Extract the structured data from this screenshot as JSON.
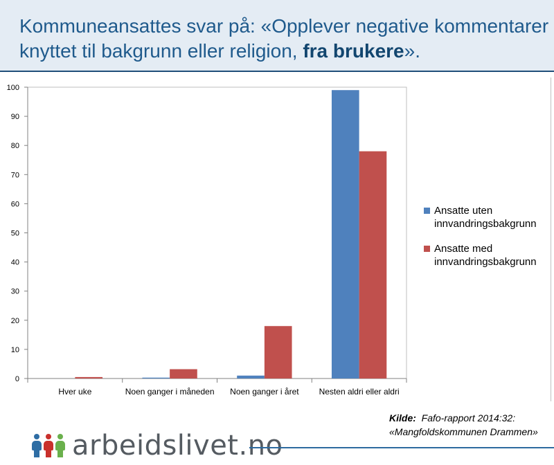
{
  "header": {
    "title_prefix": "Kommuneansattes svar på: «Opplever negative kommentarer knyttet til bakgrunn eller religion, ",
    "title_bold": "fra brukere",
    "title_suffix": "»."
  },
  "chart_data": {
    "type": "bar",
    "title": "",
    "xlabel": "",
    "ylabel": "",
    "ylim": [
      0,
      100
    ],
    "yticks": [
      0,
      10,
      20,
      30,
      40,
      50,
      60,
      70,
      80,
      90,
      100
    ],
    "categories": [
      "Hver uke",
      "Noen ganger i måneden",
      "Noen ganger i året",
      "Nesten aldri eller aldri"
    ],
    "series": [
      {
        "name": "Ansatte uten innvandringsbakgrunn",
        "legend_lines": [
          "Ansatte uten",
          "innvandringsbakgrunn"
        ],
        "color": "#4f81bd",
        "values": [
          0,
          0.3,
          1,
          99
        ]
      },
      {
        "name": "Ansatte med innvandringsbakgrunn",
        "legend_lines": [
          "Ansatte med",
          "innvandringsbakgrunn"
        ],
        "color": "#c0504d",
        "values": [
          0.5,
          3.2,
          18,
          78
        ]
      }
    ],
    "legend_position": "right"
  },
  "source": {
    "label": "Kilde:",
    "line1": "Fafo-rapport 2014:32:",
    "line2": "«Mangfoldskommunen Drammen»"
  },
  "logo": {
    "text": "arbeidslivet.no",
    "people_colors": [
      "#2e6da4",
      "#c9302c",
      "#6ab04c"
    ]
  }
}
